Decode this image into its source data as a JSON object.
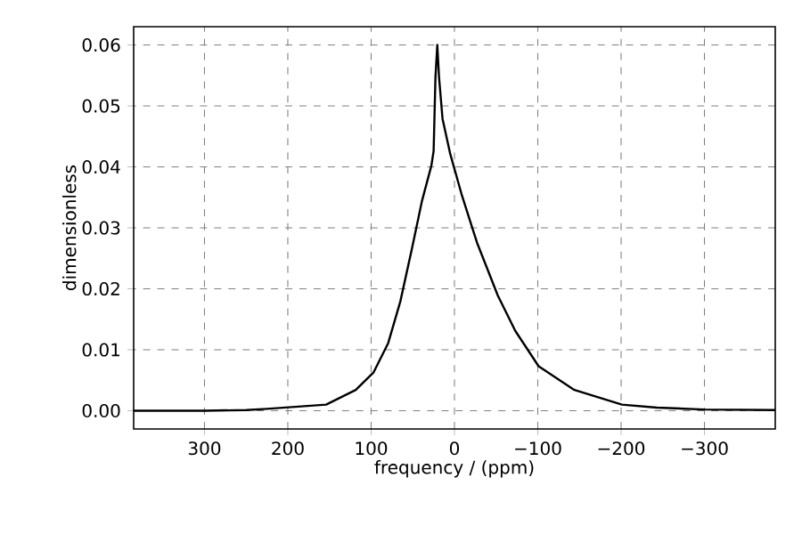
{
  "chart_data": {
    "type": "line",
    "xlabel": "frequency / (ppm)",
    "ylabel": "dimensionless",
    "x": [
      385,
      300,
      250,
      225,
      154,
      118.5,
      97,
      79.5,
      65,
      51,
      39,
      27.7,
      25,
      22.8,
      20.6,
      18.5,
      14.3,
      5,
      -9,
      -27,
      -52,
      -73,
      -101,
      -144,
      -201,
      -243,
      -300,
      -385
    ],
    "series": [
      {
        "color": "#000000",
        "values": [
          0,
          0,
          0.0001,
          0.0003,
          0.001,
          0.0034,
          0.0063,
          0.0111,
          0.0179,
          0.0266,
          0.0344,
          0.0402,
          0.0426,
          0.0547,
          0.06,
          0.0547,
          0.0479,
          0.0421,
          0.0353,
          0.0276,
          0.0189,
          0.0131,
          0.0073,
          0.0034,
          0.001,
          0.0005,
          0.0002,
          0.0001
        ]
      }
    ],
    "xlim": [
      385,
      -385
    ],
    "ylim": [
      -0.003,
      0.063
    ],
    "xticks": [
      300,
      200,
      100,
      0,
      {
        "value": -100,
        "label": "−100"
      },
      {
        "value": -200,
        "label": "−200"
      },
      {
        "value": -300,
        "label": "−300"
      }
    ],
    "yticks": [
      {
        "value": 0,
        "label": "0.00"
      },
      {
        "value": 0.01,
        "label": "0.01"
      },
      {
        "value": 0.02,
        "label": "0.02"
      },
      {
        "value": 0.03,
        "label": "0.03"
      },
      {
        "value": 0.04,
        "label": "0.04"
      },
      {
        "value": 0.05,
        "label": "0.05"
      },
      {
        "value": 0.06,
        "label": "0.06"
      }
    ],
    "grid": true,
    "marker": "none",
    "line_style": "solid"
  }
}
